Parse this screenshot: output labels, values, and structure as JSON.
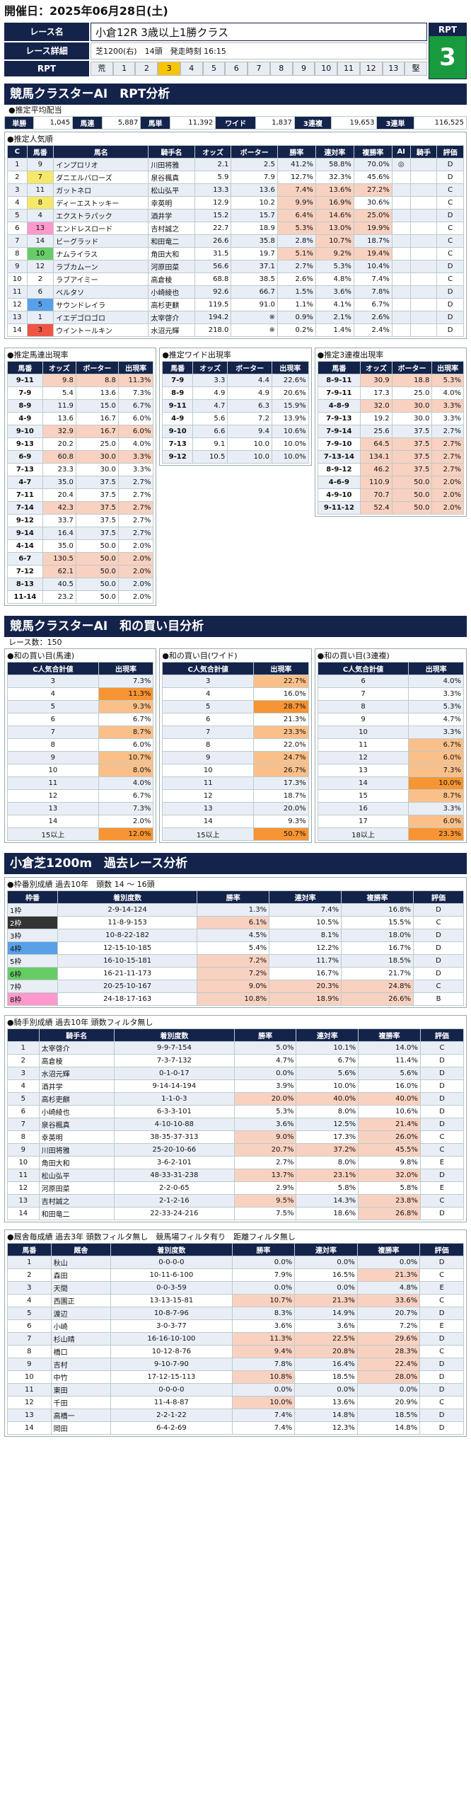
{
  "header": {
    "title": "開催日：2025年06月28日(土)"
  },
  "race": {
    "name_label": "レース名",
    "name": "小倉12R 3歳以上1勝クラス",
    "detail_label": "レース詳細",
    "course": "芝1200(右)",
    "heads": "14頭",
    "start": "発走時刻 16:15",
    "rpt_label": "RPT",
    "rpt_value": "3",
    "rpt_scale": [
      "荒",
      "1",
      "2",
      "3",
      "4",
      "5",
      "6",
      "7",
      "8",
      "9",
      "10",
      "11",
      "12",
      "13",
      "堅"
    ],
    "rpt_selected": "3"
  },
  "sections": {
    "rpt": "競馬クラスターAI　RPT分析",
    "avg": "●推定平均配当",
    "ranking": "●推定人気順",
    "umaren": "●推定馬連出現率",
    "wide": "●推定ワイド出現率",
    "sanrenpuku": "●推定3連複出現率",
    "wa": "競馬クラスターAI　和の買い目分析",
    "races": "レース数：150",
    "wa_umaren": "●和の買い目(馬連)",
    "wa_wide": "●和の買い目(ワイド)",
    "wa_3": "●和の買い目(3連複)",
    "past": "小倉芝1200m　過去レース分析",
    "waku": "●枠番別成績 過去10年　頭数 14 ～ 16頭",
    "jockey": "●騎手別成績 過去10年 頭数フィルタ無し",
    "trainer": "●厩舎毎成績 過去3年 頭数フィルタ無し　競馬場フィルタ有り　距離フィルタ無し"
  },
  "avg": [
    {
      "k": "単勝",
      "v": "1,045"
    },
    {
      "k": "馬連",
      "v": "5,887"
    },
    {
      "k": "馬単",
      "v": "11,392"
    },
    {
      "k": "ワイド",
      "v": "1,837"
    },
    {
      "k": "3連複",
      "v": "19,653"
    },
    {
      "k": "3連単",
      "v": "116,525"
    }
  ],
  "rank_head": [
    "C",
    "馬番",
    "馬名",
    "騎手名",
    "オッズ",
    "ボーター",
    "勝率",
    "連対率",
    "複勝率",
    "AI",
    "騎手",
    "評価"
  ],
  "rank": [
    [
      "1",
      "9",
      "インプロリオ",
      "川田将雅",
      "2.1",
      "2.5",
      "41.2%",
      "58.8%",
      "70.0%",
      "◎",
      "",
      "D"
    ],
    [
      "2",
      "7",
      "ダニエルバローズ",
      "泉谷楓真",
      "5.9",
      "7.9",
      "12.7%",
      "32.3%",
      "45.6%",
      "",
      "",
      "D"
    ],
    [
      "3",
      "11",
      "ガットネロ",
      "松山弘平",
      "13.3",
      "13.6",
      "7.4%",
      "13.6%",
      "27.2%",
      "",
      "",
      "C"
    ],
    [
      "4",
      "8",
      "ディーエストッキー",
      "幸英明",
      "12.9",
      "10.2",
      "9.9%",
      "16.9%",
      "30.6%",
      "",
      "",
      "C"
    ],
    [
      "5",
      "4",
      "エクストラパック",
      "酒井学",
      "15.2",
      "15.7",
      "6.4%",
      "14.6%",
      "25.0%",
      "",
      "",
      "D"
    ],
    [
      "6",
      "13",
      "エンドレスロード",
      "吉村誠之",
      "22.7",
      "18.9",
      "5.3%",
      "13.0%",
      "19.9%",
      "",
      "",
      "C"
    ],
    [
      "7",
      "14",
      "ビーグラッド",
      "和田竜二",
      "26.6",
      "35.8",
      "2.8%",
      "10.7%",
      "18.7%",
      "",
      "",
      "C"
    ],
    [
      "8",
      "10",
      "ナムライラス",
      "角田大和",
      "31.5",
      "19.7",
      "5.1%",
      "9.2%",
      "19.4%",
      "",
      "",
      "C"
    ],
    [
      "9",
      "12",
      "ラブカムーン",
      "河原田菜",
      "56.6",
      "37.1",
      "2.7%",
      "5.3%",
      "10.4%",
      "",
      "",
      "D"
    ],
    [
      "10",
      "2",
      "ラブアイミー",
      "高倉稜",
      "68.8",
      "38.5",
      "2.6%",
      "4.8%",
      "7.4%",
      "",
      "",
      "C"
    ],
    [
      "11",
      "6",
      "ベルタソ",
      "小崎綾也",
      "92.6",
      "66.7",
      "1.5%",
      "3.6%",
      "7.8%",
      "",
      "",
      "D"
    ],
    [
      "12",
      "5",
      "サウンドレイラ",
      "高杉吏麒",
      "119.5",
      "91.0",
      "1.1%",
      "4.1%",
      "6.7%",
      "",
      "",
      "D"
    ],
    [
      "13",
      "1",
      "イエデゴロゴロ",
      "太宰啓介",
      "194.2",
      "※",
      "0.9%",
      "2.1%",
      "2.6%",
      "",
      "",
      "D"
    ],
    [
      "14",
      "3",
      "ウイントールキン",
      "水沼元輝",
      "218.0",
      "※",
      "0.2%",
      "1.4%",
      "2.4%",
      "",
      "",
      "D"
    ]
  ],
  "umaren_head": [
    "馬番",
    "オッズ",
    "ボーター",
    "出現率"
  ],
  "umaren": [
    [
      "9-11",
      "9.8",
      "8.8",
      "11.3%"
    ],
    [
      "7-9",
      "5.4",
      "13.6",
      "7.3%"
    ],
    [
      "8-9",
      "11.9",
      "15.0",
      "6.7%"
    ],
    [
      "4-9",
      "13.6",
      "16.7",
      "6.0%"
    ],
    [
      "9-10",
      "32.9",
      "16.7",
      "6.0%"
    ],
    [
      "9-13",
      "20.2",
      "25.0",
      "4.0%"
    ],
    [
      "6-9",
      "60.8",
      "30.0",
      "3.3%"
    ],
    [
      "7-13",
      "23.3",
      "30.0",
      "3.3%"
    ],
    [
      "4-7",
      "35.0",
      "37.5",
      "2.7%"
    ],
    [
      "7-11",
      "20.4",
      "37.5",
      "2.7%"
    ],
    [
      "7-14",
      "42.3",
      "37.5",
      "2.7%"
    ],
    [
      "9-12",
      "33.7",
      "37.5",
      "2.7%"
    ],
    [
      "9-14",
      "16.4",
      "37.5",
      "2.7%"
    ],
    [
      "4-14",
      "35.0",
      "50.0",
      "2.0%"
    ],
    [
      "6-7",
      "130.5",
      "50.0",
      "2.0%"
    ],
    [
      "7-12",
      "62.1",
      "50.0",
      "2.0%"
    ],
    [
      "8-13",
      "40.5",
      "50.0",
      "2.0%"
    ],
    [
      "11-14",
      "23.2",
      "50.0",
      "2.0%"
    ]
  ],
  "wide": [
    [
      "7-9",
      "3.3",
      "4.4",
      "22.6%"
    ],
    [
      "8-9",
      "4.9",
      "4.9",
      "20.6%"
    ],
    [
      "9-11",
      "4.7",
      "6.3",
      "15.9%"
    ],
    [
      "4-9",
      "5.6",
      "7.2",
      "13.9%"
    ],
    [
      "9-10",
      "6.6",
      "9.4",
      "10.6%"
    ],
    [
      "7-13",
      "9.1",
      "10.0",
      "10.0%"
    ],
    [
      "9-12",
      "10.5",
      "10.0",
      "10.0%"
    ]
  ],
  "sanren": [
    [
      "8-9-11",
      "30.9",
      "18.8",
      "5.3%"
    ],
    [
      "7-9-11",
      "17.3",
      "25.0",
      "4.0%"
    ],
    [
      "4-8-9",
      "32.0",
      "30.0",
      "3.3%"
    ],
    [
      "7-9-13",
      "19.2",
      "30.0",
      "3.3%"
    ],
    [
      "7-9-14",
      "25.6",
      "37.5",
      "2.7%"
    ],
    [
      "7-9-10",
      "64.5",
      "37.5",
      "2.7%"
    ],
    [
      "7-13-14",
      "134.1",
      "37.5",
      "2.7%"
    ],
    [
      "8-9-12",
      "46.2",
      "37.5",
      "2.7%"
    ],
    [
      "4-6-9",
      "110.9",
      "50.0",
      "2.0%"
    ],
    [
      "4-9-10",
      "70.7",
      "50.0",
      "2.0%"
    ],
    [
      "9-11-12",
      "52.4",
      "50.0",
      "2.0%"
    ]
  ],
  "wa_head": [
    "C人気合計値",
    "出現率"
  ],
  "wa_umaren": [
    [
      "3",
      "7.3%"
    ],
    [
      "4",
      "11.3%"
    ],
    [
      "5",
      "9.3%"
    ],
    [
      "6",
      "6.7%"
    ],
    [
      "7",
      "8.7%"
    ],
    [
      "8",
      "6.0%"
    ],
    [
      "9",
      "10.7%"
    ],
    [
      "10",
      "8.0%"
    ],
    [
      "11",
      "4.0%"
    ],
    [
      "12",
      "6.7%"
    ],
    [
      "13",
      "7.3%"
    ],
    [
      "14",
      "2.0%"
    ],
    [
      "15以上",
      "12.0%"
    ]
  ],
  "wa_wide": [
    [
      "3",
      "22.7%"
    ],
    [
      "4",
      "16.0%"
    ],
    [
      "5",
      "28.7%"
    ],
    [
      "6",
      "21.3%"
    ],
    [
      "7",
      "23.3%"
    ],
    [
      "8",
      "22.0%"
    ],
    [
      "9",
      "24.7%"
    ],
    [
      "10",
      "26.7%"
    ],
    [
      "11",
      "17.3%"
    ],
    [
      "12",
      "18.7%"
    ],
    [
      "13",
      "20.0%"
    ],
    [
      "14",
      "9.3%"
    ],
    [
      "15以上",
      "50.7%"
    ]
  ],
  "wa_3": [
    [
      "6",
      "4.0%"
    ],
    [
      "7",
      "3.3%"
    ],
    [
      "8",
      "5.3%"
    ],
    [
      "9",
      "4.7%"
    ],
    [
      "10",
      "3.3%"
    ],
    [
      "11",
      "6.7%"
    ],
    [
      "12",
      "6.0%"
    ],
    [
      "13",
      "7.3%"
    ],
    [
      "14",
      "10.0%"
    ],
    [
      "15",
      "8.7%"
    ],
    [
      "16",
      "3.3%"
    ],
    [
      "17",
      "6.0%"
    ],
    [
      "18以上",
      "23.3%"
    ]
  ],
  "waku_head": [
    "枠番",
    "着別度数",
    "勝率",
    "連対率",
    "複勝率",
    "評価"
  ],
  "waku": [
    [
      "1枠",
      "2-9-14-124",
      "1.3%",
      "7.4%",
      "16.8%",
      "D"
    ],
    [
      "2枠",
      "11-8-9-153",
      "6.1%",
      "10.5%",
      "15.5%",
      "C"
    ],
    [
      "3枠",
      "10-8-22-182",
      "4.5%",
      "8.1%",
      "18.0%",
      "D"
    ],
    [
      "4枠",
      "12-15-10-185",
      "5.4%",
      "12.2%",
      "16.7%",
      "D"
    ],
    [
      "5枠",
      "16-10-15-181",
      "7.2%",
      "11.7%",
      "18.5%",
      "D"
    ],
    [
      "6枠",
      "16-21-11-173",
      "7.2%",
      "16.7%",
      "21.7%",
      "D"
    ],
    [
      "7枠",
      "20-25-10-167",
      "9.0%",
      "20.3%",
      "24.8%",
      "C"
    ],
    [
      "8枠",
      "24-18-17-163",
      "10.8%",
      "18.9%",
      "26.6%",
      "B"
    ]
  ],
  "jockey_head": [
    "",
    "騎手名",
    "着別度数",
    "勝率",
    "連対率",
    "複勝率",
    "評価"
  ],
  "jockey": [
    [
      "1",
      "太宰啓介",
      "9-9-7-154",
      "5.0%",
      "10.1%",
      "14.0%",
      "C"
    ],
    [
      "2",
      "高倉稜",
      "7-3-7-132",
      "4.7%",
      "6.7%",
      "11.4%",
      "D"
    ],
    [
      "3",
      "水沼元輝",
      "0-1-0-17",
      "0.0%",
      "5.6%",
      "5.6%",
      "D"
    ],
    [
      "4",
      "酒井学",
      "9-14-14-194",
      "3.9%",
      "10.0%",
      "16.0%",
      "D"
    ],
    [
      "5",
      "高杉吏麒",
      "1-1-0-3",
      "20.0%",
      "40.0%",
      "40.0%",
      "D"
    ],
    [
      "6",
      "小崎綾也",
      "6-3-3-101",
      "5.3%",
      "8.0%",
      "10.6%",
      "D"
    ],
    [
      "7",
      "泉谷楓真",
      "4-10-10-88",
      "3.6%",
      "12.5%",
      "21.4%",
      "D"
    ],
    [
      "8",
      "幸英明",
      "38-35-37-313",
      "9.0%",
      "17.3%",
      "26.0%",
      "C"
    ],
    [
      "9",
      "川田将雅",
      "25-20-10-66",
      "20.7%",
      "37.2%",
      "45.5%",
      "C"
    ],
    [
      "10",
      "角田大和",
      "3-6-2-101",
      "2.7%",
      "8.0%",
      "9.8%",
      "E"
    ],
    [
      "11",
      "松山弘平",
      "48-33-31-238",
      "13.7%",
      "23.1%",
      "32.0%",
      "D"
    ],
    [
      "12",
      "河原田菜",
      "2-2-0-65",
      "2.9%",
      "5.8%",
      "5.8%",
      "E"
    ],
    [
      "13",
      "吉村誠之",
      "2-1-2-16",
      "9.5%",
      "14.3%",
      "23.8%",
      "C"
    ],
    [
      "14",
      "和田竜二",
      "22-33-24-216",
      "7.5%",
      "18.6%",
      "26.8%",
      "D"
    ]
  ],
  "trainer_head": [
    "馬番",
    "厩舎",
    "着別度数",
    "勝率",
    "連対率",
    "複勝率",
    "評価"
  ],
  "trainer": [
    [
      "1",
      "秋山",
      "0-0-0-0",
      "0.0%",
      "0.0%",
      "0.0%",
      "D"
    ],
    [
      "2",
      "森田",
      "10-11-6-100",
      "7.9%",
      "16.5%",
      "21.3%",
      "C"
    ],
    [
      "3",
      "天間",
      "0-0-3-59",
      "0.0%",
      "0.0%",
      "4.8%",
      "E"
    ],
    [
      "4",
      "西園正",
      "13-13-15-81",
      "10.7%",
      "21.3%",
      "33.6%",
      "C"
    ],
    [
      "5",
      "渡辺",
      "10-8-7-96",
      "8.3%",
      "14.9%",
      "20.7%",
      "D"
    ],
    [
      "6",
      "小崎",
      "3-0-3-77",
      "3.6%",
      "3.6%",
      "7.2%",
      "E"
    ],
    [
      "7",
      "杉山晴",
      "16-16-10-100",
      "11.3%",
      "22.5%",
      "29.6%",
      "D"
    ],
    [
      "8",
      "橋口",
      "10-12-8-76",
      "9.4%",
      "20.8%",
      "28.3%",
      "C"
    ],
    [
      "9",
      "吉村",
      "9-10-7-90",
      "7.8%",
      "16.4%",
      "22.4%",
      "D"
    ],
    [
      "10",
      "中竹",
      "17-12-15-113",
      "10.8%",
      "18.5%",
      "28.0%",
      "D"
    ],
    [
      "11",
      "東田",
      "0-0-0-0",
      "0.0%",
      "0.0%",
      "0.0%",
      "D"
    ],
    [
      "12",
      "千田",
      "11-4-8-87",
      "10.0%",
      "13.6%",
      "20.9%",
      "C"
    ],
    [
      "13",
      "高橋一",
      "2-2-1-22",
      "7.4%",
      "14.8%",
      "18.5%",
      "D"
    ],
    [
      "14",
      "岡田",
      "6-4-2-69",
      "7.4%",
      "12.3%",
      "14.8%",
      "D"
    ]
  ]
}
